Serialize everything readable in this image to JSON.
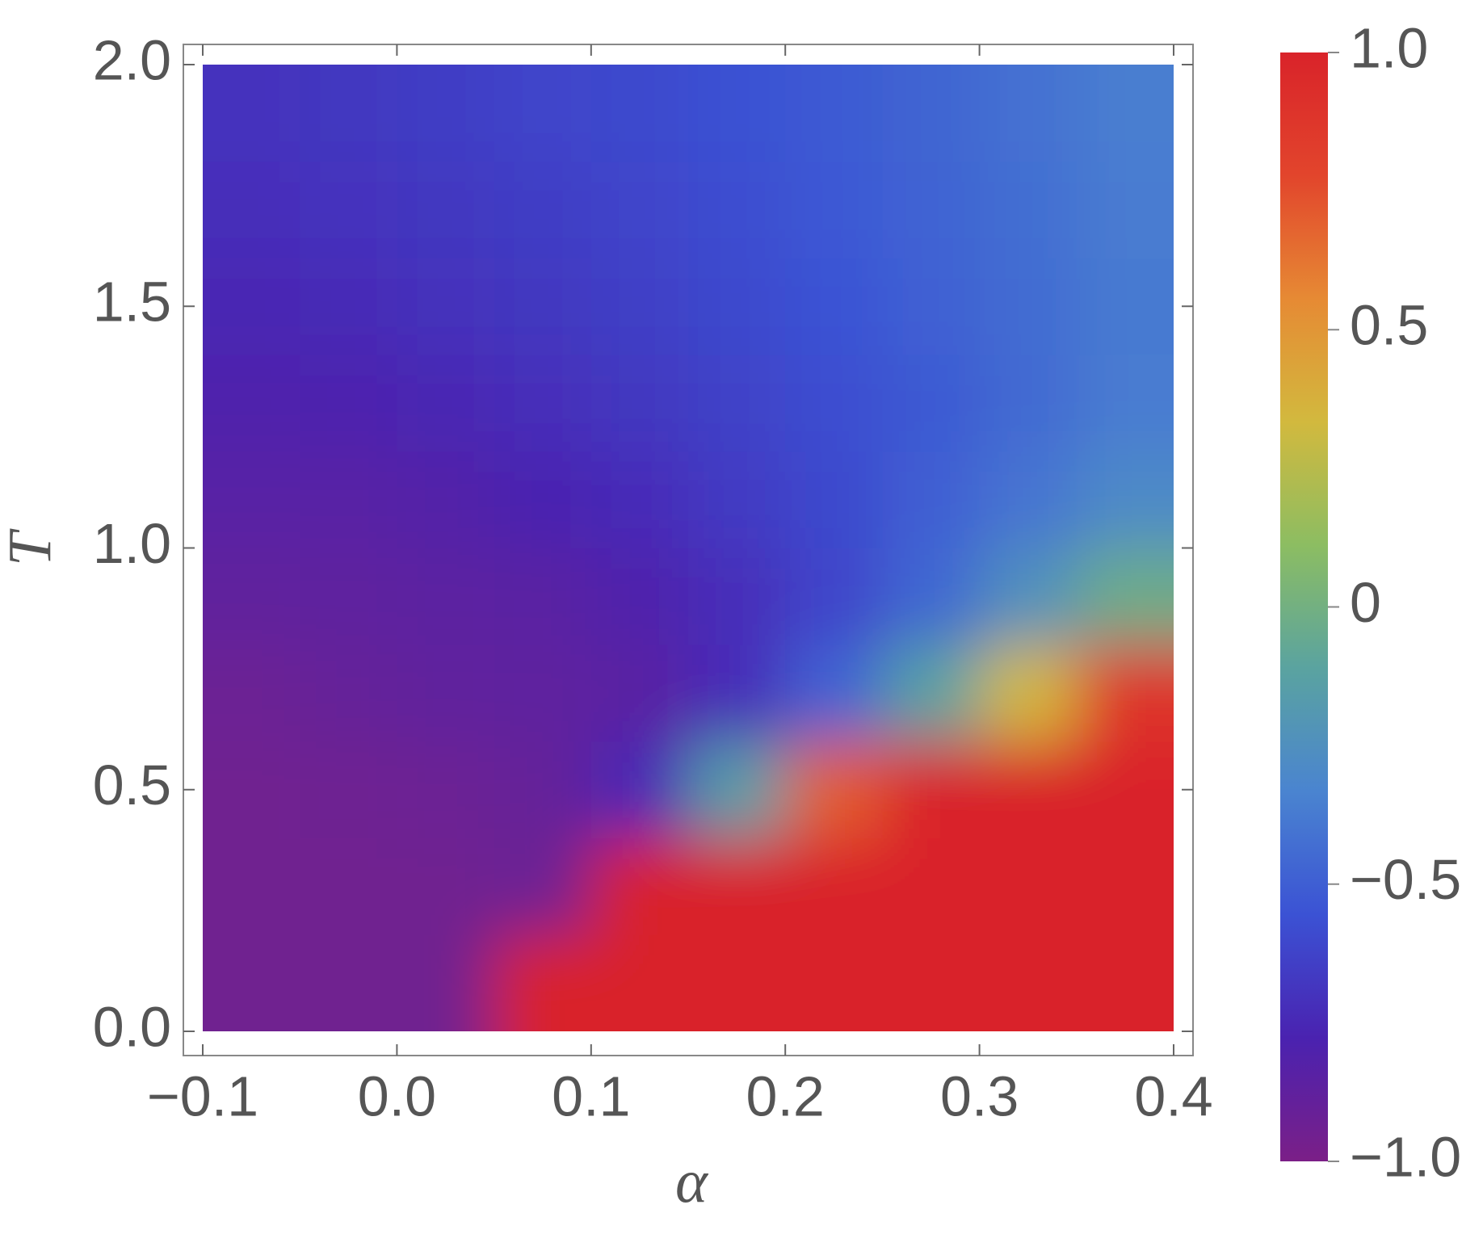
{
  "chart_data": {
    "type": "heatmap",
    "xlabel": "α",
    "ylabel": "T",
    "x": [
      -0.075,
      -0.025,
      0.025,
      0.075,
      0.125,
      0.175,
      0.225,
      0.275,
      0.325,
      0.375
    ],
    "y": [
      0.1,
      0.3,
      0.5,
      0.7,
      0.9,
      1.1,
      1.3,
      1.5,
      1.7,
      1.9
    ],
    "z": [
      [
        -0.95,
        -0.95,
        -0.95,
        1,
        1,
        1,
        1,
        1,
        1,
        1
      ],
      [
        -0.95,
        -0.95,
        -0.95,
        -0.93,
        1,
        1,
        1,
        1,
        1,
        1
      ],
      [
        -0.95,
        -0.94,
        -0.93,
        -0.9,
        -0.75,
        -0.15,
        0.7,
        1,
        1,
        1
      ],
      [
        -0.93,
        -0.9,
        -0.88,
        -0.87,
        -0.85,
        -0.73,
        -0.48,
        -0.12,
        0.34,
        0.88
      ],
      [
        -0.88,
        -0.87,
        -0.86,
        -0.85,
        -0.8,
        -0.72,
        -0.62,
        -0.46,
        -0.24,
        -0.03
      ],
      [
        -0.84,
        -0.84,
        -0.82,
        -0.78,
        -0.73,
        -0.66,
        -0.6,
        -0.5,
        -0.4,
        -0.29
      ],
      [
        -0.8,
        -0.79,
        -0.76,
        -0.72,
        -0.68,
        -0.63,
        -0.58,
        -0.52,
        -0.45,
        -0.37
      ],
      [
        -0.76,
        -0.74,
        -0.71,
        -0.68,
        -0.64,
        -0.6,
        -0.55,
        -0.49,
        -0.44,
        -0.38
      ],
      [
        -0.72,
        -0.7,
        -0.68,
        -0.65,
        -0.62,
        -0.58,
        -0.53,
        -0.48,
        -0.43,
        -0.37
      ],
      [
        -0.7,
        -0.68,
        -0.65,
        -0.62,
        -0.6,
        -0.56,
        -0.52,
        -0.47,
        -0.42,
        -0.36
      ]
    ],
    "xlim": [
      -0.1,
      0.4
    ],
    "xticks": [
      {
        "value": -0.1,
        "label": "−0.1"
      },
      {
        "value": 0,
        "label": "0.0"
      },
      0.1,
      0.2,
      0.3,
      0.4
    ],
    "ylim": [
      0,
      2
    ],
    "yticks": [
      {
        "value": 0,
        "label": "0.0"
      },
      0.5,
      {
        "value": 1,
        "label": "1.0"
      },
      1.5,
      {
        "value": 2,
        "label": "2.0"
      }
    ],
    "zlim": [
      -1,
      1
    ],
    "zticks": [
      {
        "value": -1,
        "label": "−1.0"
      },
      {
        "value": -0.5,
        "label": "−0.5"
      },
      0,
      0.5,
      {
        "value": 1,
        "label": "1.0"
      }
    ],
    "colormap": [
      "#7b1f87",
      "#4a22b0",
      "#3b52d4",
      "#4a84d0",
      "#5aa3a0",
      "#8cbd62",
      "#d2b93e",
      "#e68a34",
      "#e2452c",
      "#d9232a"
    ]
  }
}
